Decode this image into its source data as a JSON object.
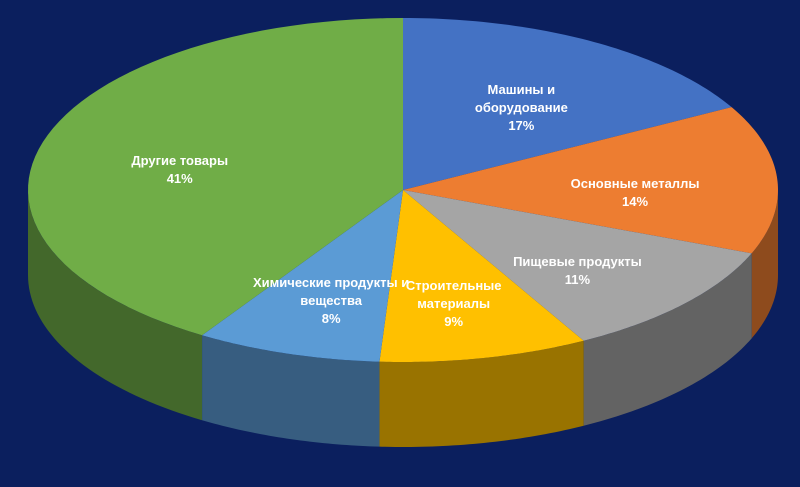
{
  "chart_data": {
    "type": "pie",
    "categories": [
      "Машины и оборудование",
      "Основные металлы",
      "Пищевые продукты",
      "Строительные материалы",
      "Химические продукты и вещества",
      "Другие товары"
    ],
    "values": [
      17,
      14,
      11,
      9,
      8,
      41
    ],
    "value_labels": [
      "17%",
      "14%",
      "11%",
      "9%",
      "8%",
      "41%"
    ],
    "colors": [
      "#4472c4",
      "#ed7d31",
      "#a5a5a5",
      "#ffc000",
      "#5b9bd5",
      "#70ad47"
    ]
  }
}
